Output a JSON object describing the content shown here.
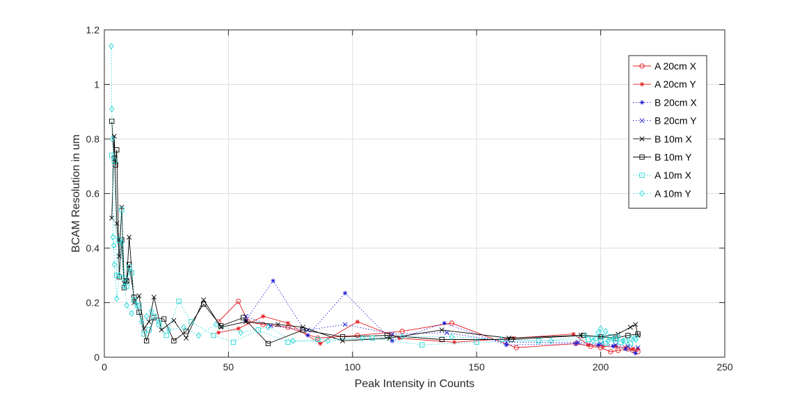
{
  "chart_data": {
    "type": "line",
    "title": "",
    "xlabel": "Peak Intensity in Counts",
    "ylabel": "BCAM Resolution in um",
    "xlim": [
      0,
      250
    ],
    "ylim": [
      0,
      1.2
    ],
    "xticks": [
      0,
      50,
      100,
      150,
      200,
      250
    ],
    "yticks": [
      0,
      0.2,
      0.4,
      0.6,
      0.8,
      1,
      1.2
    ],
    "xtick_labels": [
      "0",
      "50",
      "100",
      "150",
      "200",
      "250"
    ],
    "ytick_labels": [
      "0",
      "0.2",
      "0.4",
      "0.6",
      "0.8",
      "1",
      "1.2"
    ],
    "grid": true,
    "legend_position": "top-right",
    "series": [
      {
        "name": "A 20cm X",
        "color": "#e41a1c",
        "line": "solid",
        "marker": "circle",
        "x": [
          46,
          54,
          58,
          64,
          74,
          86,
          102,
          120,
          140,
          166,
          190,
          196,
          200,
          204,
          207,
          211,
          213,
          215
        ],
        "y": [
          0.13,
          0.205,
          0.13,
          0.12,
          0.11,
          0.07,
          0.08,
          0.095,
          0.125,
          0.035,
          0.05,
          0.04,
          0.035,
          0.02,
          0.025,
          0.03,
          0.025,
          0.02
        ]
      },
      {
        "name": "A 20cm Y",
        "color": "#e41a1c",
        "line": "solid",
        "marker": "star",
        "x": [
          46,
          54,
          64,
          74,
          87,
          102,
          119,
          141,
          165,
          189,
          195,
          201,
          206,
          210,
          213,
          215
        ],
        "y": [
          0.09,
          0.105,
          0.15,
          0.125,
          0.05,
          0.13,
          0.07,
          0.055,
          0.07,
          0.085,
          0.045,
          0.04,
          0.04,
          0.035,
          0.03,
          0.03
        ]
      },
      {
        "name": "B 20cm X",
        "color": "#1a1ad6",
        "line": "dotted",
        "marker": "star",
        "x": [
          57,
          68,
          82,
          97,
          116,
          137,
          162,
          190,
          199,
          205,
          210,
          214
        ],
        "y": [
          0.135,
          0.28,
          0.08,
          0.235,
          0.06,
          0.125,
          0.045,
          0.05,
          0.045,
          0.04,
          0.03,
          0.015
        ]
      },
      {
        "name": "B 20cm Y",
        "color": "#1a1ad6",
        "line": "dotted",
        "marker": "x",
        "x": [
          57,
          67,
          82,
          97,
          116,
          138,
          162,
          191,
          200,
          206,
          211,
          215
        ],
        "y": [
          0.15,
          0.115,
          0.1,
          0.12,
          0.085,
          0.09,
          0.055,
          0.055,
          0.05,
          0.045,
          0.04,
          0.035
        ]
      },
      {
        "name": "B 10m X",
        "color": "#000000",
        "line": "solid",
        "marker": "x",
        "x": [
          3,
          4,
          5,
          6,
          7,
          8,
          9,
          10,
          12,
          14,
          16,
          18,
          20,
          23,
          28,
          33,
          40,
          47,
          57,
          70,
          80,
          96,
          115,
          136,
          163,
          192,
          200,
          207,
          212,
          214,
          215
        ],
        "y": [
          0.51,
          0.81,
          0.49,
          0.37,
          0.55,
          0.27,
          0.28,
          0.44,
          0.2,
          0.225,
          0.105,
          0.13,
          0.22,
          0.1,
          0.135,
          0.07,
          0.21,
          0.11,
          0.13,
          0.12,
          0.11,
          0.06,
          0.07,
          0.1,
          0.07,
          0.08,
          0.075,
          0.085,
          0.11,
          0.12,
          0.08
        ]
      },
      {
        "name": "B 10m Y",
        "color": "#000000",
        "line": "solid",
        "marker": "square",
        "x": [
          3,
          4,
          4.5,
          5,
          6,
          7,
          8,
          9,
          10,
          12,
          14,
          17,
          20,
          24,
          28,
          33,
          40,
          47,
          56,
          66,
          80,
          96,
          114,
          136,
          164,
          193,
          200,
          206,
          211,
          215
        ],
        "y": [
          0.865,
          0.73,
          0.705,
          0.76,
          0.295,
          0.43,
          0.255,
          0.28,
          0.34,
          0.22,
          0.165,
          0.06,
          0.145,
          0.14,
          0.06,
          0.095,
          0.195,
          0.115,
          0.145,
          0.05,
          0.1,
          0.075,
          0.08,
          0.065,
          0.065,
          0.08,
          0.075,
          0.07,
          0.08,
          0.085
        ]
      },
      {
        "name": "A 10m X",
        "color": "#22d6d6",
        "line": "dotted",
        "marker": "square",
        "x": [
          3,
          4,
          5,
          6,
          7,
          8,
          9,
          10,
          11,
          12,
          14,
          16,
          18,
          20,
          22,
          25,
          30,
          35,
          44,
          52,
          62,
          74,
          86,
          108,
          128,
          150,
          175,
          195,
          198,
          200,
          202,
          204,
          206,
          208,
          210,
          212,
          214
        ],
        "y": [
          0.74,
          0.72,
          0.3,
          0.43,
          0.54,
          0.29,
          0.26,
          0.33,
          0.31,
          0.21,
          0.19,
          0.085,
          0.1,
          0.15,
          0.12,
          0.08,
          0.205,
          0.13,
          0.08,
          0.055,
          0.1,
          0.055,
          0.065,
          0.07,
          0.045,
          0.055,
          0.06,
          0.065,
          0.07,
          0.06,
          0.05,
          0.075,
          0.065,
          0.055,
          0.06,
          0.05,
          0.07
        ]
      },
      {
        "name": "A 10m Y",
        "color": "#22d6d6",
        "line": "dotted",
        "marker": "diamond",
        "x": [
          2.8,
          3,
          3.2,
          3.5,
          3.8,
          4,
          5,
          6,
          7,
          8,
          9,
          11,
          13,
          15,
          17,
          19,
          22,
          26,
          32,
          38,
          45,
          55,
          66,
          76,
          90,
          104,
          120,
          140,
          160,
          180,
          194,
          197,
          199,
          200,
          201,
          202,
          203,
          205,
          207,
          209,
          212,
          214
        ],
        "y": [
          1.14,
          0.91,
          0.8,
          0.44,
          0.41,
          0.34,
          0.215,
          0.3,
          0.42,
          0.26,
          0.19,
          0.16,
          0.19,
          0.13,
          0.15,
          0.17,
          0.13,
          0.1,
          0.11,
          0.08,
          0.12,
          0.09,
          0.11,
          0.06,
          0.06,
          0.07,
          0.075,
          0.075,
          0.065,
          0.06,
          0.08,
          0.06,
          0.09,
          0.105,
          0.075,
          0.095,
          0.06,
          0.065,
          0.075,
          0.06,
          0.07,
          0.065
        ]
      }
    ]
  }
}
